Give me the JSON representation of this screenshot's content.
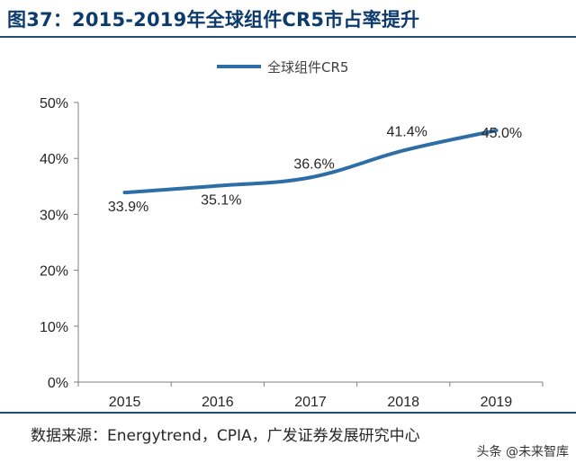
{
  "figure": {
    "title": "图37：2015-2019年全球组件CR5市占率提升",
    "source": "数据来源：Energytrend，CPIA，广发证券发展研究中心",
    "watermark": "头条 @未来智库"
  },
  "colors": {
    "line": "#2e6ea6",
    "title": "#0d3b6e",
    "rule": "#1f4e79",
    "axis": "#7f7f7f"
  },
  "chart_data": {
    "type": "line",
    "title": "",
    "xlabel": "",
    "ylabel": "",
    "categories": [
      "2015",
      "2016",
      "2017",
      "2018",
      "2019"
    ],
    "series": [
      {
        "name": "全球组件CR5",
        "values": [
          33.9,
          35.1,
          36.6,
          41.4,
          45.0
        ],
        "labels": [
          "33.9%",
          "35.1%",
          "36.6%",
          "41.4%",
          "45.0%"
        ]
      }
    ],
    "ylim": [
      0,
      50
    ],
    "yticks": [
      0,
      10,
      20,
      30,
      40,
      50
    ],
    "ytick_labels": [
      "0%",
      "10%",
      "20%",
      "30%",
      "40%",
      "50%"
    ],
    "grid": false,
    "legend": "top-center"
  }
}
